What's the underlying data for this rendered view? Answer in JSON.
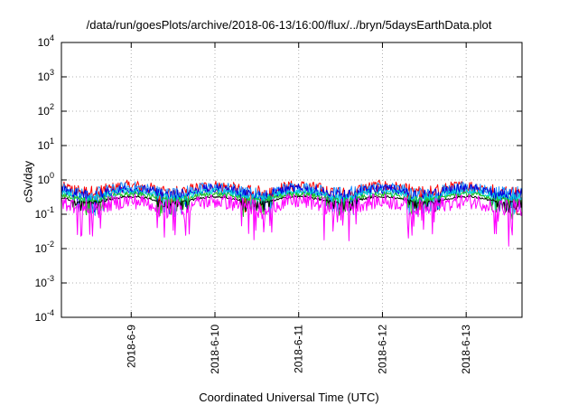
{
  "chart_data": {
    "type": "line",
    "title": "/data/run/goesPlots/archive/2018-06-13/16:00/flux/../bryn/5daysEarthData.plot",
    "xlabel": "Coordinated Universal Time (UTC)",
    "ylabel": "cSv/day",
    "yscale": "log",
    "ylim": [
      0.0001,
      10000
    ],
    "xlim": [
      "2018-06-08T04:00",
      "2018-06-13T16:00"
    ],
    "y_ticks": [
      {
        "base": "10",
        "exp": "-4"
      },
      {
        "base": "10",
        "exp": "-3"
      },
      {
        "base": "10",
        "exp": "-2"
      },
      {
        "base": "10",
        "exp": "-1"
      },
      {
        "base": "10",
        "exp": "0"
      },
      {
        "base": "10",
        "exp": "1"
      },
      {
        "base": "10",
        "exp": "2"
      },
      {
        "base": "10",
        "exp": "3"
      },
      {
        "base": "10",
        "exp": "4"
      }
    ],
    "x_ticks": [
      "2018-6-9",
      "2018-6-10",
      "2018-6-11",
      "2018-6-12",
      "2018-6-13"
    ],
    "grid": true,
    "legend": "none",
    "series": [
      {
        "color": "#ff0000",
        "level": 0.55,
        "spread": 0.35,
        "dip": 0.55
      },
      {
        "color": "#1e90ff",
        "level": 0.5,
        "spread": 0.35,
        "dip": 0.55
      },
      {
        "color": "#0000dd",
        "level": 0.45,
        "spread": 0.3,
        "dip": 0.55
      },
      {
        "color": "#00d8d8",
        "level": 0.38,
        "spread": 0.2,
        "dip": 0.5
      },
      {
        "color": "#22c022",
        "level": 0.32,
        "spread": 0.15,
        "dip": 0.5
      },
      {
        "color": "#000000",
        "level": 0.27,
        "spread": 0.06,
        "dip": 0.3
      },
      {
        "color": "#ff00ff",
        "level": 0.2,
        "spread": 0.45,
        "dip": 1.1
      }
    ]
  }
}
